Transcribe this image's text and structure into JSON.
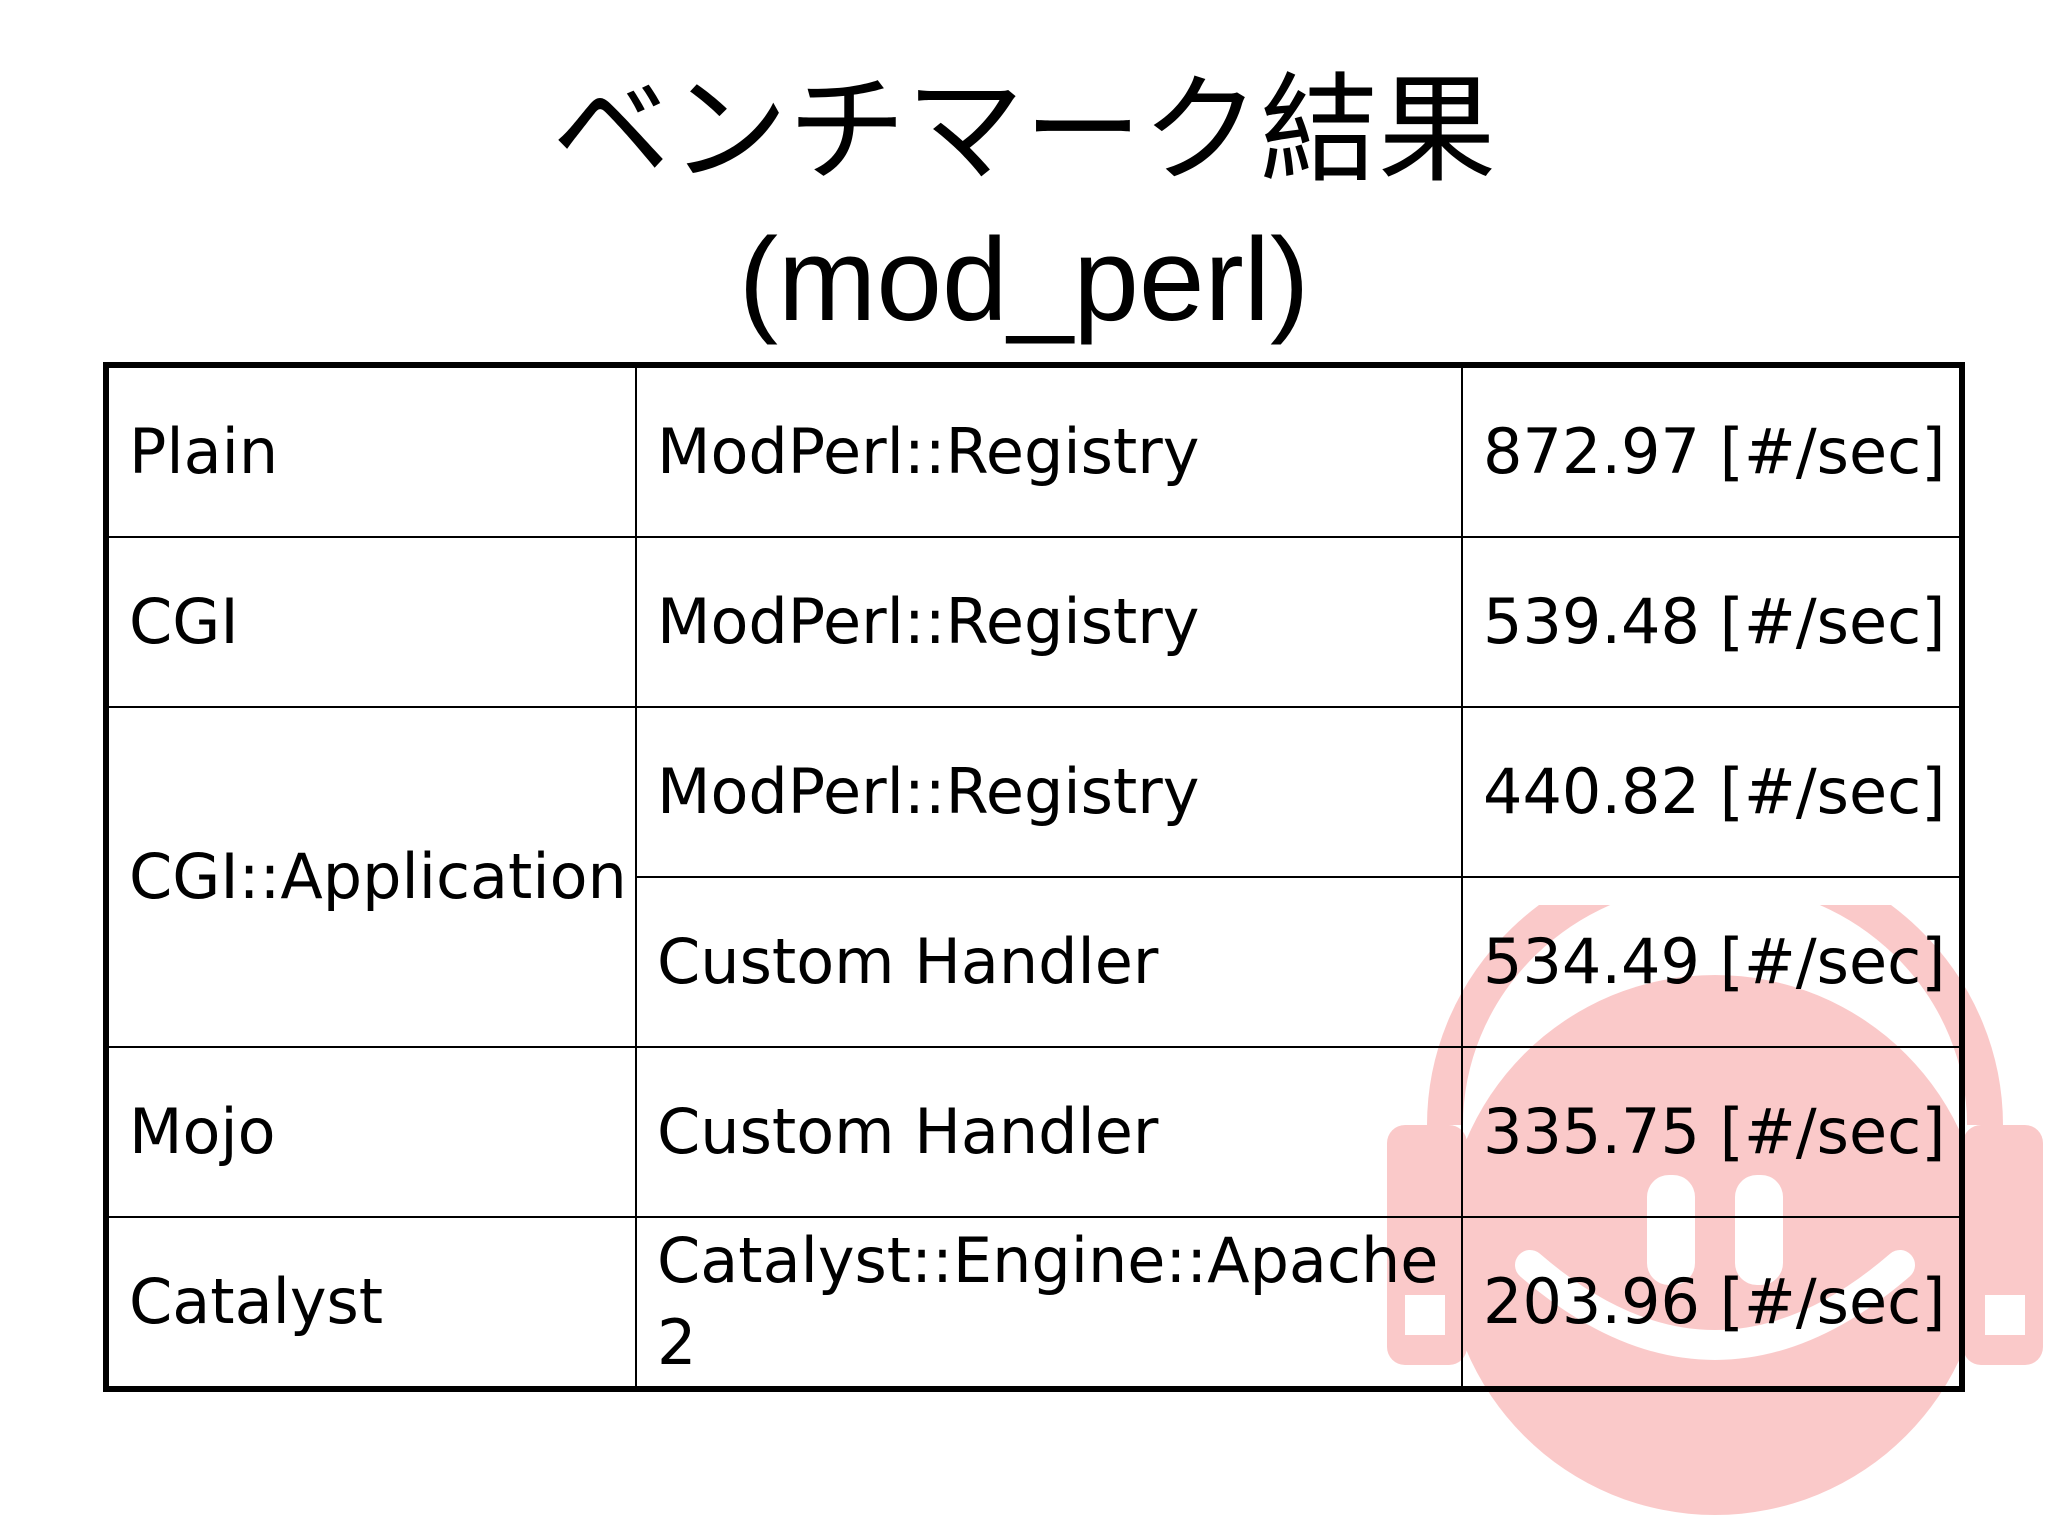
{
  "slide": {
    "title": "ベンチマーク結果",
    "subtitle": "(mod_perl)"
  },
  "table": {
    "rows": [
      {
        "framework": "Plain",
        "handler": "ModPerl::Registry",
        "result": "872.97 [#/sec]"
      },
      {
        "framework": "CGI",
        "handler": "ModPerl::Registry",
        "result": "539.48 [#/sec]"
      },
      {
        "framework": "CGI::Application",
        "handler": "ModPerl::Registry",
        "result": "440.82 [#/sec]"
      },
      {
        "handler": "Custom Handler",
        "result": "534.49 [#/sec]"
      },
      {
        "framework": "Mojo",
        "handler": "Custom Handler",
        "result": "335.75 [#/sec]"
      },
      {
        "framework": "Catalyst",
        "handler": "Catalyst::Engine::Apache2",
        "result": "203.96 [#/sec]"
      }
    ]
  },
  "colors": {
    "watermark": "#f25b5b",
    "text": "#000000",
    "background": "#ffffff"
  },
  "icons": {
    "watermark": "headphone-face-logo"
  }
}
